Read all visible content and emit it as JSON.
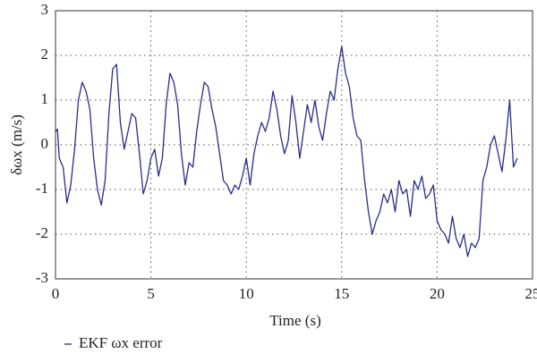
{
  "chart_data": {
    "type": "line",
    "xlabel": "Time (s)",
    "ylabel": "δωx (m/s)",
    "x": [
      0,
      0.1,
      0.2,
      0.4,
      0.6,
      0.8,
      1.0,
      1.2,
      1.4,
      1.6,
      1.8,
      2.0,
      2.2,
      2.4,
      2.6,
      2.8,
      3.0,
      3.2,
      3.4,
      3.6,
      3.8,
      4.0,
      4.2,
      4.4,
      4.6,
      4.8,
      5.0,
      5.2,
      5.4,
      5.6,
      5.8,
      6.0,
      6.2,
      6.4,
      6.6,
      6.8,
      7.0,
      7.2,
      7.4,
      7.6,
      7.8,
      8.0,
      8.2,
      8.4,
      8.6,
      8.8,
      9.0,
      9.2,
      9.4,
      9.6,
      9.8,
      10.0,
      10.2,
      10.4,
      10.6,
      10.8,
      11.0,
      11.2,
      11.4,
      11.6,
      11.8,
      12.0,
      12.2,
      12.4,
      12.6,
      12.8,
      13.0,
      13.2,
      13.4,
      13.6,
      13.8,
      14.0,
      14.2,
      14.4,
      14.6,
      14.8,
      15.0,
      15.2,
      15.4,
      15.6,
      15.8,
      16.0,
      16.2,
      16.4,
      16.6,
      16.8,
      17.0,
      17.2,
      17.4,
      17.6,
      17.8,
      18.0,
      18.2,
      18.4,
      18.6,
      18.8,
      19.0,
      19.2,
      19.4,
      19.6,
      19.8,
      20.0,
      20.2,
      20.4,
      20.6,
      20.8,
      21.0,
      21.2,
      21.4,
      21.6,
      21.8,
      22.0,
      22.2,
      22.4,
      22.6,
      22.8,
      23.0,
      23.2,
      23.4,
      23.6,
      23.8,
      24.0,
      24.2
    ],
    "series": [
      {
        "name": "EKF ωx error",
        "color": "#2b2d8c",
        "values": [
          0.3,
          0.35,
          -0.3,
          -0.5,
          -1.3,
          -0.9,
          -0.1,
          1.0,
          1.4,
          1.2,
          0.8,
          -0.3,
          -1.0,
          -1.35,
          -0.8,
          0.7,
          1.7,
          1.8,
          0.5,
          -0.1,
          0.3,
          0.7,
          0.6,
          -0.2,
          -1.1,
          -0.8,
          -0.3,
          -0.1,
          -0.7,
          -0.3,
          0.9,
          1.6,
          1.4,
          0.9,
          -0.2,
          -0.9,
          -0.4,
          -0.5,
          0.3,
          0.9,
          1.4,
          1.3,
          0.8,
          0.4,
          -0.2,
          -0.8,
          -0.9,
          -1.1,
          -0.9,
          -1.0,
          -0.7,
          -0.3,
          -0.9,
          -0.2,
          0.2,
          0.5,
          0.3,
          0.6,
          1.2,
          0.8,
          0.2,
          -0.2,
          0.1,
          1.1,
          0.5,
          -0.3,
          0.3,
          0.9,
          0.5,
          1.0,
          0.4,
          0.1,
          0.7,
          1.2,
          1.0,
          1.7,
          2.2,
          1.6,
          1.3,
          0.6,
          0.2,
          0.1,
          -0.8,
          -1.5,
          -2.0,
          -1.7,
          -1.5,
          -1.1,
          -1.3,
          -1.0,
          -1.5,
          -0.8,
          -1.1,
          -1.0,
          -1.6,
          -0.8,
          -1.0,
          -0.7,
          -1.2,
          -1.1,
          -0.9,
          -1.7,
          -1.9,
          -2.0,
          -2.2,
          -1.6,
          -2.1,
          -2.3,
          -2.0,
          -2.5,
          -2.2,
          -2.3,
          -2.1,
          -0.8,
          -0.5,
          0.0,
          0.2,
          -0.2,
          -0.6,
          0.1,
          1.0,
          -0.5,
          -0.3
        ]
      }
    ],
    "xlim": [
      0,
      25
    ],
    "xticks": [
      0,
      5,
      10,
      15,
      20,
      25
    ],
    "ylim": [
      -3,
      3
    ],
    "yticks": [
      -3,
      -2,
      -1,
      0,
      1,
      2,
      3
    ],
    "grid": true,
    "legend": "bottom-left"
  }
}
